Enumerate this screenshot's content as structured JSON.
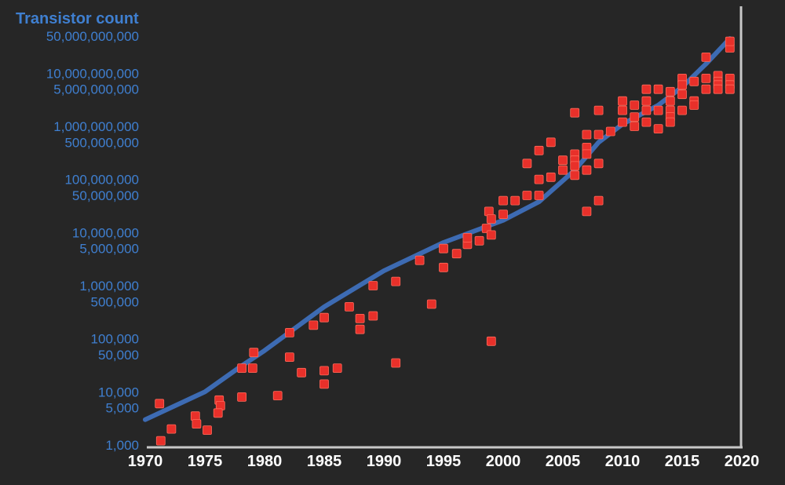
{
  "chart_data": {
    "type": "scatter",
    "ylabel": "Transistor count",
    "xlabel": "",
    "xlim": [
      1970,
      2020
    ],
    "ylim": [
      1000,
      50000000000
    ],
    "yscale": "log",
    "grid": false,
    "x_ticks": [
      "1970",
      "1975",
      "1980",
      "1985",
      "1990",
      "1995",
      "2000",
      "2005",
      "2010",
      "2015",
      "2020"
    ],
    "y_ticks": [
      {
        "label": "50,000,000,000",
        "value": 50000000000
      },
      {
        "label": "10,000,000,000",
        "value": 10000000000
      },
      {
        "label": "5,000,000,000",
        "value": 5000000000
      },
      {
        "label": "1,000,000,000",
        "value": 1000000000
      },
      {
        "label": "500,000,000",
        "value": 500000000
      },
      {
        "label": "100,000,000",
        "value": 100000000
      },
      {
        "label": "50,000,000",
        "value": 50000000
      },
      {
        "label": "10,000,000",
        "value": 10000000
      },
      {
        "label": "5,000,000",
        "value": 5000000
      },
      {
        "label": "1,000,000",
        "value": 1000000
      },
      {
        "label": "500,000",
        "value": 500000
      },
      {
        "label": "100,000",
        "value": 100000
      },
      {
        "label": "50,000",
        "value": 50000
      },
      {
        "label": "10,000",
        "value": 10000
      },
      {
        "label": "5,000",
        "value": 5000
      },
      {
        "label": "1,000",
        "value": 1000
      }
    ],
    "colors": {
      "background": "#262626",
      "trend": "#3d6bb3",
      "points": "#e8302a",
      "axis_text": "#3f7fd0",
      "x_tick_text": "#ffffff",
      "axis_line": "#c8c8c8"
    },
    "series": [
      {
        "type": "line",
        "points": [
          [
            1970,
            3000
          ],
          [
            1975,
            10000
          ],
          [
            1978,
            30000
          ],
          [
            1980,
            60000
          ],
          [
            1985,
            400000
          ],
          [
            1990,
            1900000
          ],
          [
            1995,
            6500000
          ],
          [
            2000,
            17000000
          ],
          [
            2003,
            38000000
          ],
          [
            2006,
            150000000
          ],
          [
            2008,
            500000000
          ],
          [
            2010,
            1100000000
          ],
          [
            2013,
            2500000000
          ],
          [
            2015,
            5500000000
          ],
          [
            2017,
            15000000000
          ],
          [
            2019,
            45000000000
          ]
        ]
      },
      {
        "type": "scatter",
        "points": [
          [
            1971.2,
            6000
          ],
          [
            1971.3,
            1200
          ],
          [
            1972.2,
            2000
          ],
          [
            1974.2,
            3500
          ],
          [
            1974.3,
            2500
          ],
          [
            1975.2,
            1900
          ],
          [
            1976.2,
            7000
          ],
          [
            1976.3,
            5500
          ],
          [
            1976.1,
            4000
          ],
          [
            1978.1,
            8000
          ],
          [
            1978.1,
            28000
          ],
          [
            1979.0,
            28000
          ],
          [
            1979.1,
            55000
          ],
          [
            1981.1,
            8500
          ],
          [
            1982.1,
            130000
          ],
          [
            1982.1,
            45000
          ],
          [
            1983.1,
            23000
          ],
          [
            1984.1,
            180000
          ],
          [
            1985.0,
            250000
          ],
          [
            1985.0,
            25000
          ],
          [
            1985.0,
            14000
          ],
          [
            1986.1,
            28000
          ],
          [
            1987.1,
            400000
          ],
          [
            1988.0,
            240000
          ],
          [
            1988.0,
            150000
          ],
          [
            1989.1,
            270000
          ],
          [
            1989.1,
            1000000
          ],
          [
            1991.0,
            1200000
          ],
          [
            1991.0,
            35000
          ],
          [
            1993.0,
            3000000
          ],
          [
            1994.0,
            450000
          ],
          [
            1995.0,
            2200000
          ],
          [
            1995.0,
            5000000
          ],
          [
            1996.1,
            4000000
          ],
          [
            1997.0,
            6000000
          ],
          [
            1997.0,
            8000000
          ],
          [
            1998.0,
            7000000
          ],
          [
            1998.6,
            12000000
          ],
          [
            1998.8,
            25000000
          ],
          [
            1999.0,
            18000000
          ],
          [
            1999.0,
            9000000
          ],
          [
            1999.0,
            90000
          ],
          [
            2000.0,
            22000000
          ],
          [
            2000.0,
            40000000
          ],
          [
            2001.0,
            40000000
          ],
          [
            2002.0,
            200000000
          ],
          [
            2002.0,
            50000000
          ],
          [
            2003.0,
            350000000
          ],
          [
            2003.0,
            100000000
          ],
          [
            2003.0,
            50000000
          ],
          [
            2004.0,
            500000000
          ],
          [
            2004.0,
            110000000
          ],
          [
            2005.0,
            230000000
          ],
          [
            2005.0,
            150000000
          ],
          [
            2006.0,
            300000000
          ],
          [
            2006.0,
            230000000
          ],
          [
            2006.0,
            180000000
          ],
          [
            2006.0,
            120000000
          ],
          [
            2006.0,
            1800000000
          ],
          [
            2007.0,
            400000000
          ],
          [
            2007.0,
            300000000
          ],
          [
            2007.0,
            150000000
          ],
          [
            2007.0,
            700000000
          ],
          [
            2007.0,
            25000000
          ],
          [
            2008.0,
            2000000000
          ],
          [
            2008.0,
            700000000
          ],
          [
            2008.0,
            200000000
          ],
          [
            2008.0,
            40000000
          ],
          [
            2009.0,
            800000000
          ],
          [
            2010.0,
            3000000000
          ],
          [
            2010.0,
            2000000000
          ],
          [
            2010.0,
            1200000000
          ],
          [
            2011.0,
            2500000000
          ],
          [
            2011.0,
            1500000000
          ],
          [
            2011.0,
            1000000000
          ],
          [
            2012.0,
            5000000000
          ],
          [
            2012.0,
            3000000000
          ],
          [
            2012.0,
            2000000000
          ],
          [
            2012.0,
            1200000000
          ],
          [
            2013.0,
            5000000000
          ],
          [
            2013.0,
            2000000000
          ],
          [
            2013.0,
            900000000
          ],
          [
            2014.0,
            4500000000
          ],
          [
            2014.0,
            3000000000
          ],
          [
            2014.0,
            2000000000
          ],
          [
            2014.0,
            1500000000
          ],
          [
            2014.0,
            1200000000
          ],
          [
            2015.0,
            8000000000
          ],
          [
            2015.0,
            6000000000
          ],
          [
            2015.0,
            4000000000
          ],
          [
            2015.0,
            2000000000
          ],
          [
            2016.0,
            7000000000
          ],
          [
            2016.0,
            3000000000
          ],
          [
            2016.0,
            2500000000
          ],
          [
            2017.0,
            20000000000
          ],
          [
            2017.0,
            8000000000
          ],
          [
            2017.0,
            5000000000
          ],
          [
            2018.0,
            9000000000
          ],
          [
            2018.0,
            7000000000
          ],
          [
            2018.0,
            6000000000
          ],
          [
            2018.0,
            5000000000
          ],
          [
            2019.0,
            8000000000
          ],
          [
            2019.0,
            6000000000
          ],
          [
            2019.0,
            5000000000
          ],
          [
            2019.0,
            30000000000
          ],
          [
            2019.0,
            40000000000
          ]
        ]
      }
    ]
  }
}
